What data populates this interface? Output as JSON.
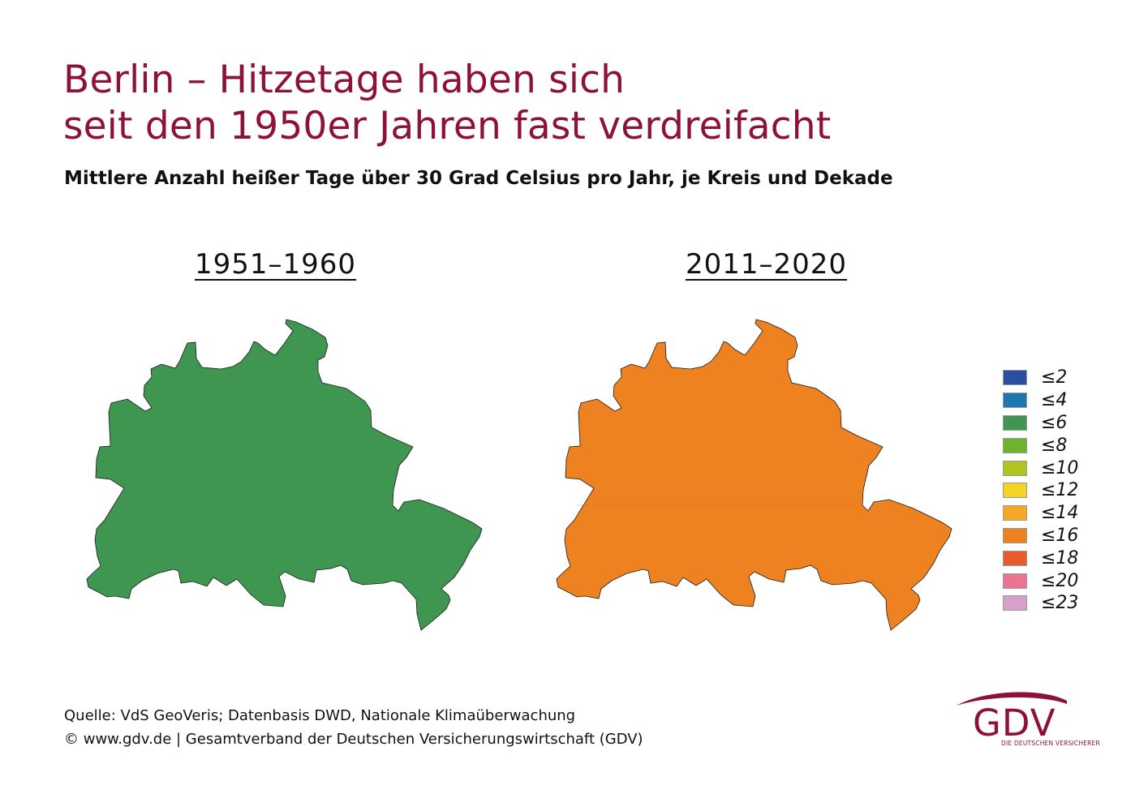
{
  "title": {
    "line1": "Berlin – Hitzetage haben sich",
    "line2": "seit den 1950er Jahren fast verdreifacht"
  },
  "subtitle": "Mittlere Anzahl heißer Tage über 30 Grad Celsius pro Jahr, je Kreis und Dekade",
  "maps": [
    {
      "decade": "1951–1960",
      "class_label": "≤6",
      "color": "#3e9651"
    },
    {
      "decade": "2011–2020",
      "class_label": "≤16",
      "color": "#ef8220"
    }
  ],
  "legend": [
    {
      "label": "≤2",
      "color": "#2a4f9e"
    },
    {
      "label": "≤4",
      "color": "#1f77b0"
    },
    {
      "label": "≤6",
      "color": "#3e9651"
    },
    {
      "label": "≤8",
      "color": "#6cb42e"
    },
    {
      "label": "≤10",
      "color": "#afc41d"
    },
    {
      "label": "≤12",
      "color": "#f4d324"
    },
    {
      "label": "≤14",
      "color": "#f5a726"
    },
    {
      "label": "≤16",
      "color": "#ef8220"
    },
    {
      "label": "≤18",
      "color": "#e95b2a"
    },
    {
      "label": "≤20",
      "color": "#ed7393"
    },
    {
      "label": "≤23",
      "color": "#d6a0cb"
    }
  ],
  "source": {
    "line1": "Quelle: VdS GeoVeris; Datenbasis DWD, Nationale Klimaüberwachung",
    "line2": "© www.gdv.de | Gesamtverband der Deutschen Versicherungswirtschaft (GDV)"
  },
  "logo": {
    "text": "GDV",
    "tagline": "DIE DEUTSCHEN VERSICHERER",
    "color": "#8e1238"
  }
}
